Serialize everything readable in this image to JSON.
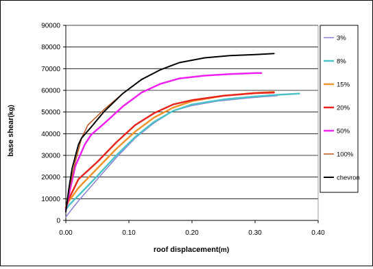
{
  "chart_data": {
    "type": "line",
    "xlabel_main": "roof displacement",
    "xlabel_unit": "(m)",
    "ylabel_main": "base shear",
    "ylabel_unit": "(kg)",
    "xlim": [
      0,
      0.4
    ],
    "ylim": [
      0,
      90000
    ],
    "x_ticks": [
      0,
      0.1,
      0.2,
      0.3,
      0.4
    ],
    "x_tick_labels": [
      "0.00",
      "0.10",
      "0.20",
      "0.30",
      "0.40"
    ],
    "y_ticks": [
      0,
      10000,
      20000,
      30000,
      40000,
      50000,
      60000,
      70000,
      80000,
      90000
    ],
    "y_tick_labels": [
      "0",
      "10000",
      "20000",
      "30000",
      "40000",
      "50000",
      "60000",
      "70000",
      "80000",
      "90000"
    ],
    "grid": "horizontal",
    "legend_position": "right",
    "series": [
      {
        "name": "3%",
        "color": "#8c7fd6",
        "width": 1.5,
        "points": [
          [
            0,
            1500
          ],
          [
            0.005,
            3500
          ],
          [
            0.02,
            9000
          ],
          [
            0.05,
            19000
          ],
          [
            0.08,
            29000
          ],
          [
            0.11,
            38000
          ],
          [
            0.14,
            45000
          ],
          [
            0.17,
            50500
          ],
          [
            0.2,
            53000
          ],
          [
            0.24,
            55000
          ],
          [
            0.28,
            56200
          ],
          [
            0.31,
            57000
          ],
          [
            0.335,
            57500
          ]
        ]
      },
      {
        "name": "8%",
        "color": "#4cc3c9",
        "width": 2.5,
        "points": [
          [
            0,
            5000
          ],
          [
            0.005,
            7000
          ],
          [
            0.02,
            11500
          ],
          [
            0.05,
            20500
          ],
          [
            0.08,
            30000
          ],
          [
            0.11,
            38500
          ],
          [
            0.14,
            45500
          ],
          [
            0.17,
            50500
          ],
          [
            0.2,
            53500
          ],
          [
            0.25,
            55800
          ],
          [
            0.3,
            57200
          ],
          [
            0.34,
            58000
          ],
          [
            0.37,
            58500
          ]
        ]
      },
      {
        "name": "15%",
        "color": "#f0932b",
        "width": 2.5,
        "points": [
          [
            0,
            6000
          ],
          [
            0.005,
            9000
          ],
          [
            0.02,
            15000
          ],
          [
            0.05,
            24000
          ],
          [
            0.08,
            33000
          ],
          [
            0.11,
            41000
          ],
          [
            0.14,
            47500
          ],
          [
            0.17,
            52000
          ],
          [
            0.2,
            55000
          ],
          [
            0.25,
            57500
          ],
          [
            0.3,
            58800
          ],
          [
            0.33,
            59300
          ]
        ]
      },
      {
        "name": "20%",
        "color": "#e8251c",
        "width": 2.5,
        "points": [
          [
            0,
            6000
          ],
          [
            0.005,
            10000
          ],
          [
            0.02,
            19000
          ],
          [
            0.05,
            27000
          ],
          [
            0.08,
            36000
          ],
          [
            0.11,
            44000
          ],
          [
            0.14,
            49500
          ],
          [
            0.17,
            53500
          ],
          [
            0.2,
            55500
          ],
          [
            0.25,
            57500
          ],
          [
            0.3,
            58700
          ],
          [
            0.33,
            59000
          ]
        ]
      },
      {
        "name": "50%",
        "color": "#f020f0",
        "width": 2.5,
        "points": [
          [
            0,
            5000
          ],
          [
            0.005,
            12000
          ],
          [
            0.015,
            25000
          ],
          [
            0.03,
            35000
          ],
          [
            0.04,
            39500
          ],
          [
            0.06,
            44500
          ],
          [
            0.09,
            52500
          ],
          [
            0.12,
            59000
          ],
          [
            0.15,
            63000
          ],
          [
            0.18,
            65500
          ],
          [
            0.22,
            66800
          ],
          [
            0.26,
            67500
          ],
          [
            0.3,
            68000
          ],
          [
            0.31,
            68000
          ]
        ]
      },
      {
        "name": "100%",
        "color": "#b9531a",
        "width": 1.5,
        "points": [
          [
            0,
            6000
          ],
          [
            0.005,
            14000
          ],
          [
            0.015,
            27000
          ],
          [
            0.025,
            38000
          ],
          [
            0.035,
            44000
          ],
          [
            0.06,
            51000
          ],
          [
            0.09,
            58500
          ],
          [
            0.12,
            65000
          ],
          [
            0.15,
            69500
          ],
          [
            0.18,
            72800
          ],
          [
            0.22,
            75000
          ],
          [
            0.26,
            76000
          ],
          [
            0.3,
            76500
          ],
          [
            0.33,
            77000
          ]
        ]
      },
      {
        "name": "chevron",
        "color": "#000000",
        "width": 2,
        "points": [
          [
            0,
            4000
          ],
          [
            0.005,
            15000
          ],
          [
            0.01,
            24000
          ],
          [
            0.02,
            35000
          ],
          [
            0.025,
            38000
          ],
          [
            0.04,
            43000
          ],
          [
            0.06,
            50000
          ],
          [
            0.09,
            58500
          ],
          [
            0.12,
            65000
          ],
          [
            0.15,
            69500
          ],
          [
            0.18,
            72800
          ],
          [
            0.22,
            75000
          ],
          [
            0.26,
            76000
          ],
          [
            0.3,
            76500
          ],
          [
            0.33,
            77000
          ]
        ]
      }
    ]
  }
}
